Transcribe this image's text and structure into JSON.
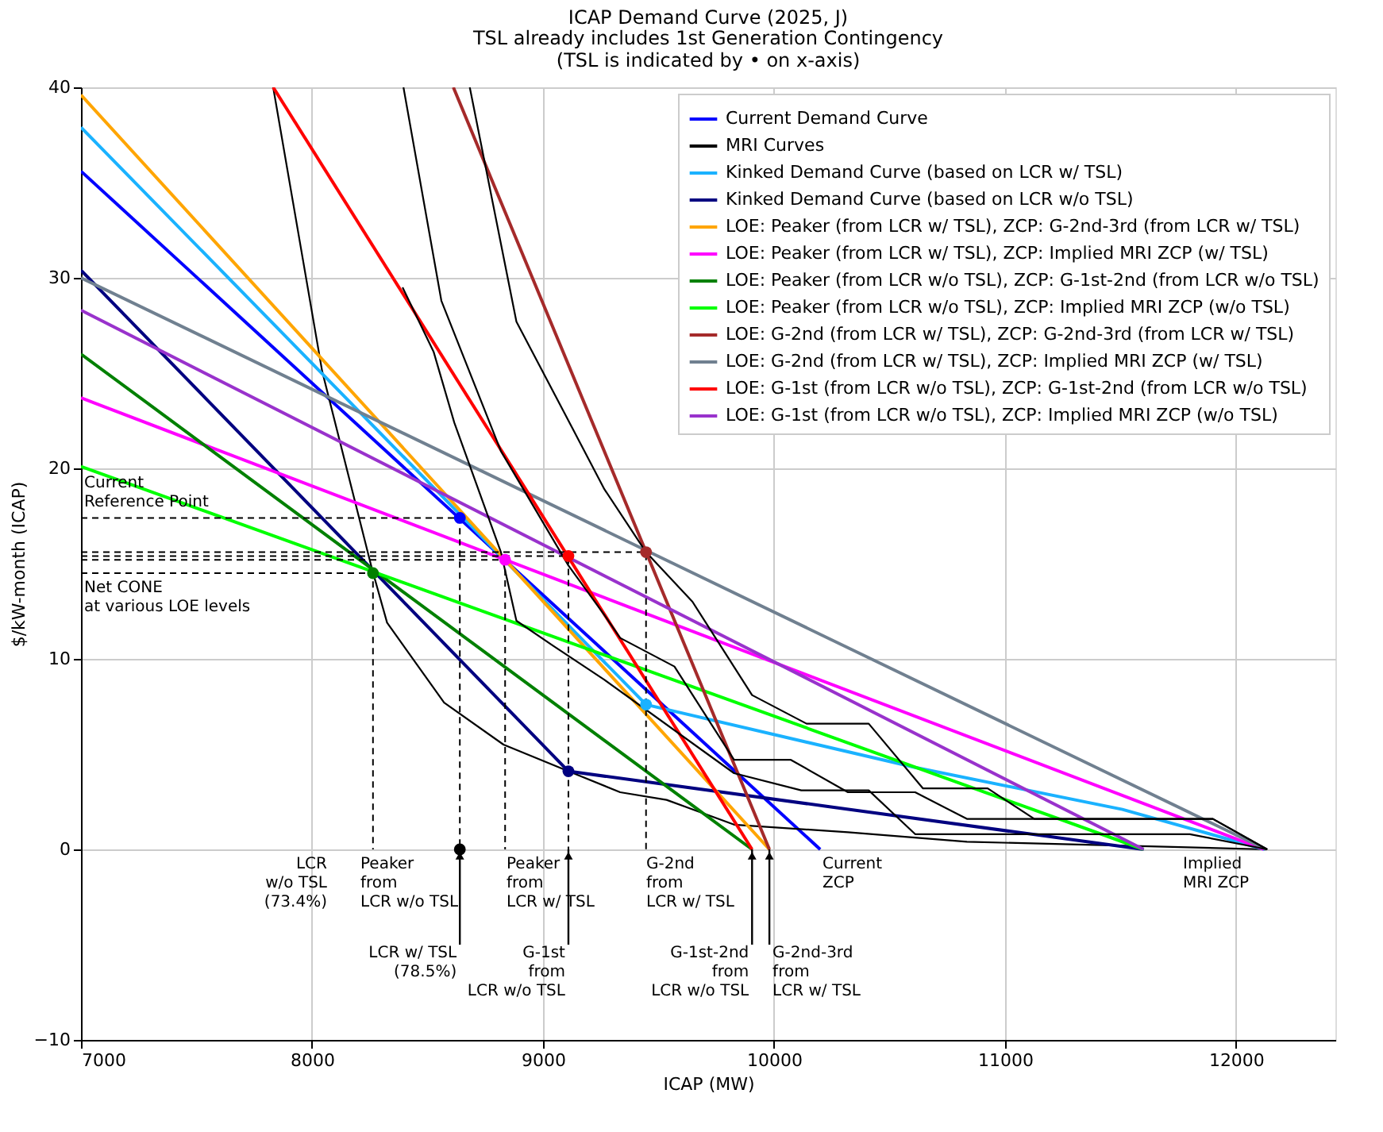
{
  "chart_data": {
    "type": "line",
    "title": "ICAP Demand Curve (2025, J)",
    "subtitle": "TSL already includes 1st Generation Contingency\n(TSL is indicated by • on x-axis)",
    "xlabel": "ICAP (MW)",
    "ylabel": "$/kW-month (ICAP)",
    "xlim": [
      7000,
      12430
    ],
    "ylim": [
      -10,
      40
    ],
    "xticks": [
      7000,
      8000,
      9000,
      10000,
      11000,
      12000
    ],
    "yticks": [
      -10,
      0,
      10,
      20,
      30,
      40
    ],
    "grid": true,
    "legend": "top right",
    "series": [
      {
        "name": "Current Demand Curve",
        "color": "#0000ff",
        "x": [
          7000,
          10200
        ],
        "values": [
          35.6,
          0
        ]
      },
      {
        "name": "MRI Curves",
        "color": "#000000",
        "x": [
          7832,
          8044,
          8258,
          8325,
          8572,
          8829,
          9110,
          9334,
          9535,
          9827,
          10320,
          10835,
          12135
        ],
        "values": [
          40,
          25.1,
          14.8,
          11.9,
          7.7,
          5.5,
          4.1,
          3.0,
          2.6,
          1.3,
          0.9,
          0.4,
          0
        ]
      },
      {
        "name": "Kinked Demand Curve (based on LCR w/ TSL)",
        "color": "#1ab2ff",
        "x": [
          7000,
          9446,
          10611,
          11508,
          12124
        ],
        "values": [
          37.9,
          7.6,
          4.3,
          2.1,
          0
        ]
      },
      {
        "name": "Kinked Demand Curve (based on LCR w/o TSL)",
        "color": "#000080",
        "x": [
          7000,
          9110,
          11600
        ],
        "values": [
          30.4,
          4.1,
          0
        ]
      },
      {
        "name": "LOE: Peaker (from LCR w/ TSL), ZCP: G-2nd-3rd (from LCR w/ TSL)",
        "color": "#ffa500",
        "x": [
          7000,
          9980
        ],
        "values": [
          39.6,
          0
        ]
      },
      {
        "name": "LOE: Peaker (from LCR w/ TSL), ZCP: Implied MRI ZCP (w/ TSL)",
        "color": "#ff00ff",
        "x": [
          7000,
          12120
        ],
        "values": [
          23.7,
          0
        ]
      },
      {
        "name": "LOE: Peaker (from LCR w/o TSL), ZCP: G-1st-2nd (from LCR w/o TSL)",
        "color": "#008000",
        "x": [
          7000,
          9905
        ],
        "values": [
          26.0,
          0
        ]
      },
      {
        "name": "LOE: Peaker (from LCR w/o TSL), ZCP: Implied MRI ZCP (w/o TSL)",
        "color": "#00ff00",
        "x": [
          7000,
          11600
        ],
        "values": [
          20.1,
          0
        ]
      },
      {
        "name": "LOE: G-2nd (from LCR w/ TSL), ZCP: G-2nd-3rd (from LCR w/ TSL)",
        "color": "#a52a2a",
        "x": [
          8612,
          9980
        ],
        "values": [
          40,
          0
        ]
      },
      {
        "name": "LOE: G-2nd (from LCR w/ TSL), ZCP: Implied MRI ZCP (w/ TSL)",
        "color": "#708090",
        "x": [
          7000,
          12130
        ],
        "values": [
          30.0,
          0
        ]
      },
      {
        "name": "LOE: G-1st (from LCR w/o TSL), ZCP: G-1st-2nd (from LCR w/o TSL)",
        "color": "#ff0000",
        "x": [
          7832,
          9905
        ],
        "values": [
          40,
          0
        ]
      },
      {
        "name": "LOE: G-1st (from LCR w/o TSL), ZCP: Implied MRI ZCP (w/o TSL)",
        "color": "#9932cc",
        "x": [
          7000,
          11600
        ],
        "values": [
          28.3,
          0
        ]
      },
      {
        "color": "#000000",
        "x": [
          8396,
          8560,
          8818,
          9110,
          9266,
          9334,
          9569,
          9827,
          10073,
          10320,
          10611,
          10835,
          11900,
          12135
        ],
        "values": [
          40,
          28.8,
          20.9,
          14.9,
          12.3,
          11.1,
          9.6,
          4.7,
          4.7,
          3.0,
          3.0,
          1.6,
          1.6,
          0
        ]
      },
      {
        "color": "#000000",
        "x": [
          8392,
          8527,
          8616,
          8818,
          8885,
          9042,
          9266,
          9827,
          10118,
          10410,
          10611,
          11800,
          12135
        ],
        "values": [
          29.5,
          26.1,
          22.4,
          15.6,
          12.0,
          10.7,
          8.9,
          4.0,
          3.1,
          3.1,
          0.8,
          0.8,
          0
        ]
      },
      {
        "color": "#000000",
        "x": [
          8683,
          8885,
          9132,
          9266,
          9446,
          9647,
          9905,
          10141,
          10410,
          10645,
          10925,
          11127,
          11900,
          12135
        ],
        "values": [
          40,
          27.7,
          22.0,
          18.9,
          15.6,
          13.0,
          8.1,
          6.6,
          6.6,
          3.2,
          3.2,
          1.6,
          1.6,
          0
        ]
      },
      {
        "color": "#000000",
        "line_style": "dashed",
        "x": [
          7000,
          8640,
          8640
        ],
        "values": [
          17.4,
          17.4,
          0
        ]
      },
      {
        "color": "#000000",
        "line_style": "dashed",
        "x": [
          7000,
          8836,
          8836
        ],
        "values": [
          15.2,
          15.2,
          0
        ]
      },
      {
        "color": "#000000",
        "line_style": "dashed",
        "x": [
          7000,
          9110,
          9110
        ],
        "values": [
          15.4,
          15.4,
          0
        ]
      },
      {
        "color": "#000000",
        "line_style": "dashed",
        "x": [
          7000,
          9446,
          9446
        ],
        "values": [
          15.6,
          15.6,
          0
        ]
      },
      {
        "color": "#000000",
        "line_style": "dashed",
        "x": [
          7000,
          8264,
          8264
        ],
        "values": [
          14.5,
          14.5,
          0
        ]
      },
      {
        "type": "scatter",
        "marker": "circle",
        "x": [
          8640,
          8836,
          9110,
          9446,
          8264,
          9110,
          9446,
          8640
        ],
        "values": [
          17.4,
          15.2,
          15.4,
          15.6,
          14.5,
          4.1,
          7.6,
          0
        ],
        "colors": [
          "#0000ff",
          "#ff00ff",
          "#ff0000",
          "#a52a2a",
          "#008000",
          "#000080",
          "#1ab2ff",
          "#000000"
        ]
      }
    ],
    "annotations": [
      "Current\nReference Point",
      "Net CONE\nat various LOE levels",
      "LCR\nw/o TSL\n(73.4%)",
      "Peaker\nfrom\nLCR w/o TSL",
      "Peaker\nfrom\nLCR w/ TSL",
      "G-2nd\nfrom\nLCR w/ TSL",
      "Current\nZCP",
      "Implied\nMRI ZCP",
      {
        "text": "LCR w/ TSL\n(78.5%)",
        "x": 8640,
        "y": 0
      },
      {
        "text": "G-1st\nfrom\nLCR w/o TSL",
        "x": 9110,
        "y": 0
      },
      {
        "text": "G-1st-2nd\nfrom\nLCR w/o TSL",
        "x": 9905,
        "y": 0
      },
      {
        "text": "G-2nd-3rd\nfrom\nLCR w/ TSL",
        "x": 9980,
        "y": 0
      }
    ]
  }
}
